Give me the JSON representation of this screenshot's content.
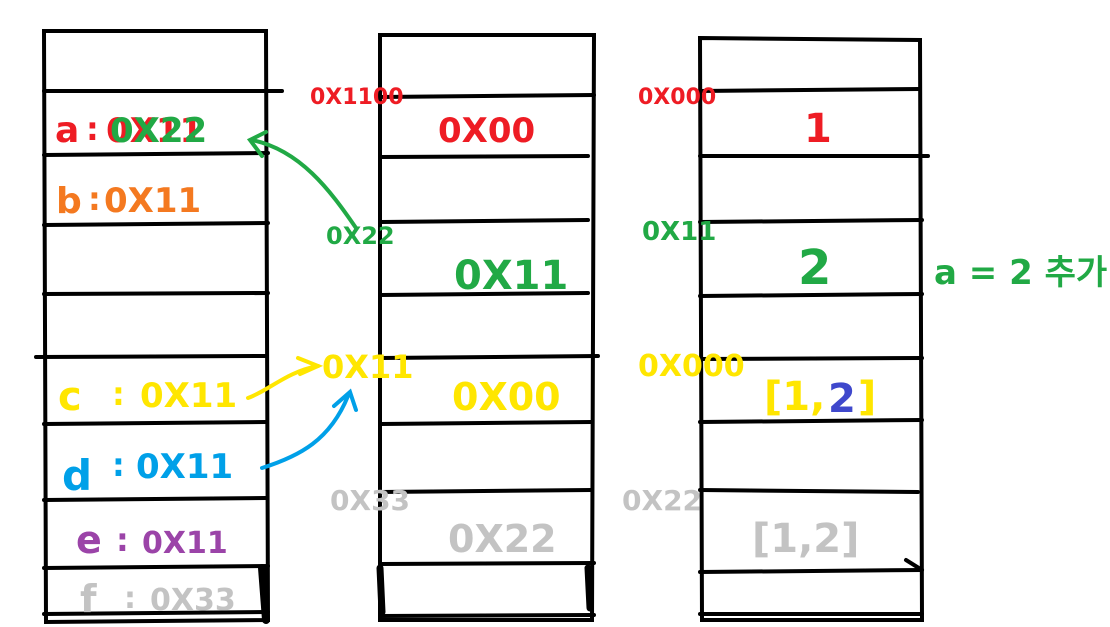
{
  "colors": {
    "red": "#ee1c24",
    "green": "#21a945",
    "orange": "#f47920",
    "yellow": "#ffe600",
    "blue": "#00a0e8",
    "purple": "#9b44a8",
    "gray": "#c3c3c3",
    "navy": "#3f48cc",
    "black": "#000000"
  },
  "variables": {
    "a_name": "a",
    "a_sep": ":",
    "a_old": "0X11",
    "a_new": "0X22",
    "b_name": "b",
    "b_sep": ":",
    "b_value": "0X11",
    "c_name": "c",
    "c_sep": ":",
    "c_value": "0X11",
    "d_name": "d",
    "d_sep": ":",
    "d_value": "0X11",
    "e_name": "e",
    "e_sep": ":",
    "e_value": "0X11",
    "f_name": "f",
    "f_sep": ":",
    "f_value": "0X33"
  },
  "addresses": {
    "obj_1100": "0X1100",
    "obj_22": "0X22",
    "obj_11": "0X11",
    "obj_33": "0X33",
    "data_000_top": "0X000",
    "data_11": "0X11",
    "data_000_mid": "0X000",
    "data_22": "0X22"
  },
  "object_cells": {
    "cell1": "0X00",
    "cell2": "0X11",
    "cell3": "0X00",
    "cell4": "0X22"
  },
  "data_cells": {
    "cell1": "1",
    "cell2": "2",
    "cell3_open": "[1,",
    "cell3_two": "2",
    "cell3_close": "]",
    "cell4": "[1,2]"
  },
  "note": "a = 2 추가"
}
